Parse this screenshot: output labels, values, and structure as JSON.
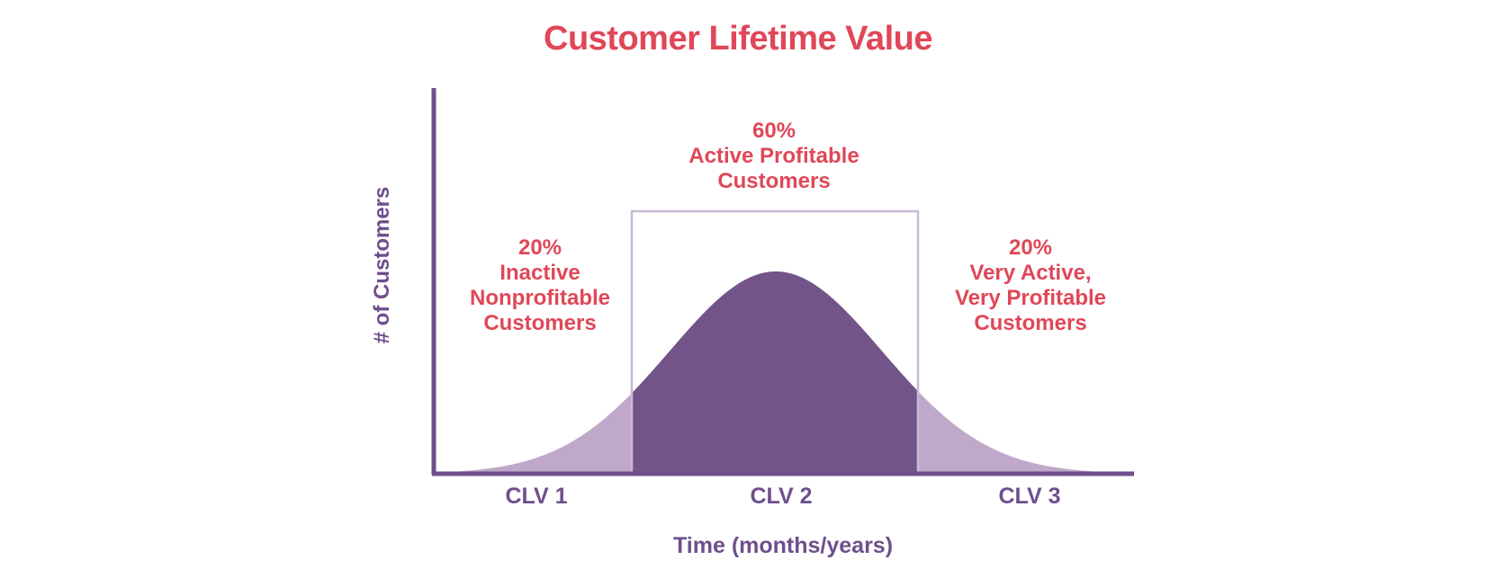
{
  "title": "Customer Lifetime Value",
  "y_axis_label": "# of Customers",
  "x_axis_label": "Time (months/years)",
  "segments": [
    {
      "id": "clv1",
      "lines": [
        "20%",
        "Inactive",
        "Nonprofitable",
        "Customers"
      ],
      "tick": "CLV 1"
    },
    {
      "id": "clv2",
      "lines": [
        "60%",
        "Active Profitable",
        "Customers"
      ],
      "tick": "CLV 2"
    },
    {
      "id": "clv3",
      "lines": [
        "20%",
        "Very Active,",
        "Very Profitable",
        "Customers"
      ],
      "tick": "CLV 3"
    }
  ],
  "colors": {
    "title": "#e04758",
    "axis": "#6e4f8c",
    "curve_center": "#735489",
    "curve_tails": "#bfa8c9",
    "box_outline": "#c9b9d6"
  }
}
